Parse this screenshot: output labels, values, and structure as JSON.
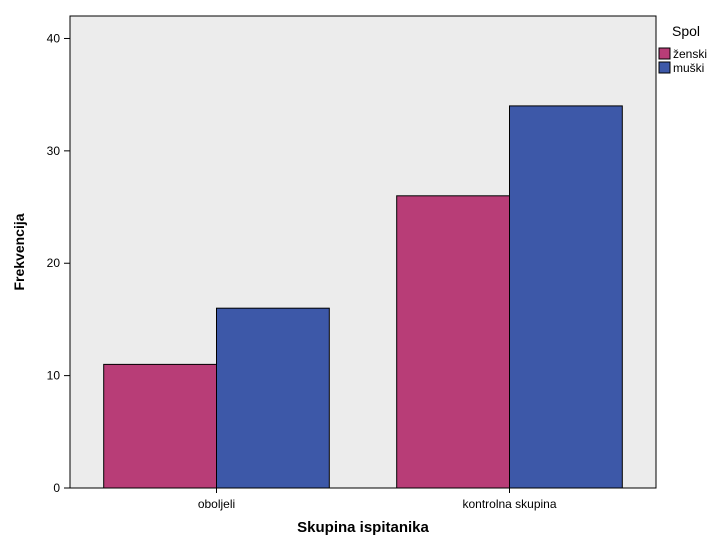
{
  "chart_data": {
    "type": "bar",
    "categories": [
      "oboljeli",
      "kontrolna skupina"
    ],
    "series": [
      {
        "name": "ženski",
        "values": [
          11,
          26
        ],
        "color": "#b83d77"
      },
      {
        "name": "muški",
        "values": [
          16,
          34
        ],
        "color": "#3d58a8"
      }
    ],
    "xlabel": "Skupina ispitanika",
    "ylabel": "Frekvencija",
    "ylim": [
      0,
      42
    ],
    "yticks": [
      0,
      10,
      20,
      30,
      40
    ],
    "legend": {
      "title": "Spol",
      "position": "top-right"
    },
    "plot_background": "#ececec",
    "grid": false
  }
}
